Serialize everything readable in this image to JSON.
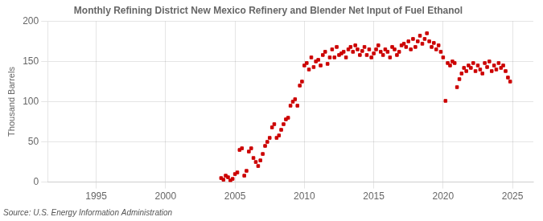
{
  "chart_data": {
    "type": "scatter",
    "title": "Monthly Refining District New Mexico Refinery and Blender Net Input of Fuel Ethanol",
    "ylabel": "Thousand Barrels",
    "source": "Source: U.S. Energy Information Administration",
    "color": "#cc0000",
    "marker": "square",
    "grid": true,
    "xlim": [
      1991.5,
      2026.5
    ],
    "ylim": [
      0,
      200
    ],
    "xticks": [
      1995,
      2000,
      2005,
      2010,
      2015,
      2020,
      2025
    ],
    "yticks": [
      0,
      50,
      100,
      150,
      200
    ],
    "x": [
      2004.0,
      2004.17,
      2004.33,
      2004.5,
      2004.67,
      2004.83,
      2005.0,
      2005.17,
      2005.33,
      2005.5,
      2005.67,
      2005.83,
      2006.0,
      2006.17,
      2006.33,
      2006.5,
      2006.67,
      2006.83,
      2007.0,
      2007.17,
      2007.33,
      2007.5,
      2007.67,
      2007.83,
      2008.0,
      2008.17,
      2008.33,
      2008.5,
      2008.67,
      2008.83,
      2009.0,
      2009.17,
      2009.33,
      2009.5,
      2009.67,
      2009.83,
      2010.0,
      2010.17,
      2010.33,
      2010.5,
      2010.67,
      2010.83,
      2011.0,
      2011.17,
      2011.33,
      2011.5,
      2011.67,
      2011.83,
      2012.0,
      2012.17,
      2012.33,
      2012.5,
      2012.67,
      2012.83,
      2013.0,
      2013.17,
      2013.33,
      2013.5,
      2013.67,
      2013.83,
      2014.0,
      2014.17,
      2014.33,
      2014.5,
      2014.67,
      2014.83,
      2015.0,
      2015.17,
      2015.33,
      2015.5,
      2015.67,
      2015.83,
      2016.0,
      2016.17,
      2016.33,
      2016.5,
      2016.67,
      2016.83,
      2017.0,
      2017.17,
      2017.33,
      2017.5,
      2017.67,
      2017.83,
      2018.0,
      2018.17,
      2018.33,
      2018.5,
      2018.67,
      2018.83,
      2019.0,
      2019.17,
      2019.33,
      2019.5,
      2019.67,
      2019.83,
      2020.0,
      2020.17,
      2020.33,
      2020.5,
      2020.67,
      2020.83,
      2021.0,
      2021.17,
      2021.33,
      2021.5,
      2021.67,
      2021.83,
      2022.0,
      2022.17,
      2022.33,
      2022.5,
      2022.67,
      2022.83,
      2023.0,
      2023.17,
      2023.33,
      2023.5,
      2023.67,
      2023.83,
      2024.0,
      2024.17,
      2024.33,
      2024.5,
      2024.67,
      2024.83
    ],
    "values": [
      5.0,
      3.0,
      8.0,
      6.0,
      2.0,
      4.0,
      10.0,
      12.0,
      40.0,
      42.0,
      8.0,
      14.0,
      38.0,
      42.0,
      30.0,
      25.0,
      20.0,
      27.0,
      35.0,
      45.0,
      50.0,
      55.0,
      68.0,
      72.0,
      55.0,
      58.0,
      65.0,
      72.0,
      78.0,
      80.0,
      95.0,
      100.0,
      103.0,
      95.0,
      120.0,
      125.0,
      145.0,
      148.0,
      140.0,
      155.0,
      143.0,
      150.0,
      152.0,
      145.0,
      158.0,
      162.0,
      147.0,
      155.0,
      165.0,
      155.0,
      168.0,
      158.0,
      160.0,
      162.0,
      155.0,
      165.0,
      168.0,
      162.0,
      170.0,
      165.0,
      158.0,
      163.0,
      168.0,
      158.0,
      165.0,
      155.0,
      160.0,
      165.0,
      170.0,
      162.0,
      158.0,
      165.0,
      162.0,
      155.0,
      168.0,
      165.0,
      158.0,
      162.0,
      170.0,
      172.0,
      168.0,
      175.0,
      165.0,
      178.0,
      168.0,
      175.0,
      182.0,
      172.0,
      178.0,
      185.0,
      175.0,
      168.0,
      173.0,
      165.0,
      170.0,
      162.0,
      155.0,
      101.0,
      148.0,
      145.0,
      150.0,
      148.0,
      118.0,
      128.0,
      135.0,
      142.0,
      138.0,
      145.0,
      142.0,
      148.0,
      138.0,
      145.0,
      140.0,
      135.0,
      148.0,
      143.0,
      150.0,
      138.0,
      145.0,
      140.0,
      148.0,
      142.0,
      145.0,
      138.0,
      130.0,
      125.0
    ]
  }
}
